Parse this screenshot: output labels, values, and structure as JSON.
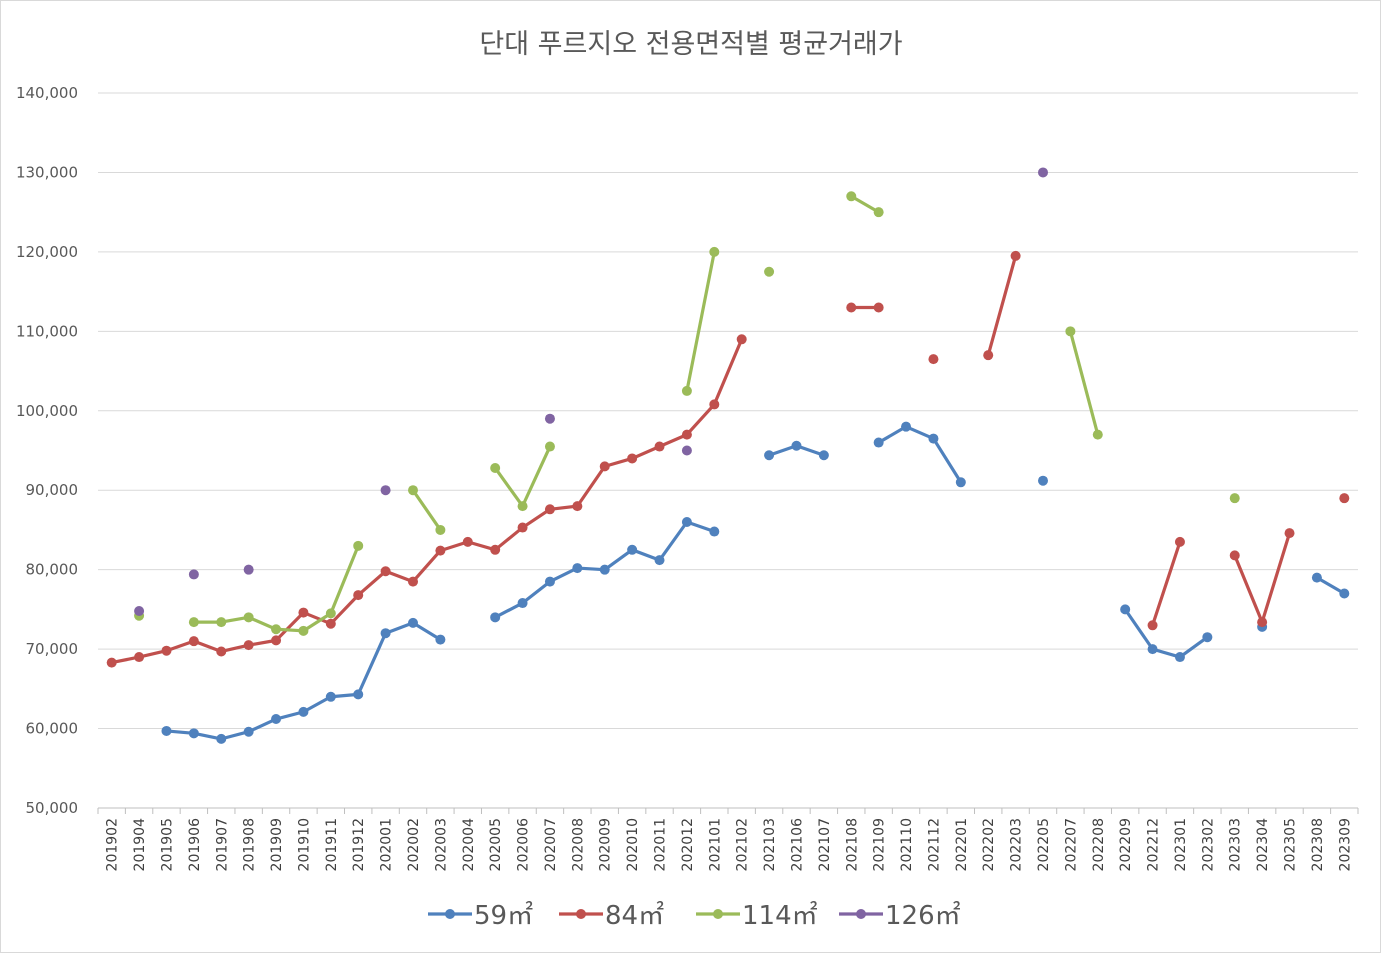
{
  "chart_data": {
    "type": "line",
    "title": "단대 푸르지오 전용면적별 평균거래가",
    "xlabel": "",
    "ylabel": "",
    "ylim": [
      50000,
      140000
    ],
    "yticks": [
      50000,
      60000,
      70000,
      80000,
      90000,
      100000,
      110000,
      120000,
      130000,
      140000
    ],
    "ytick_labels": [
      "50,000",
      "60,000",
      "70,000",
      "80,000",
      "90,000",
      "100,000",
      "110,000",
      "120,000",
      "130,000",
      "140,000"
    ],
    "grid": true,
    "legend_position": "bottom",
    "categories": [
      "201902",
      "201904",
      "201905",
      "201906",
      "201907",
      "201908",
      "201909",
      "201910",
      "201911",
      "201912",
      "202001",
      "202002",
      "202003",
      "202004",
      "202005",
      "202006",
      "202007",
      "202008",
      "202009",
      "202010",
      "202011",
      "202012",
      "202101",
      "202102",
      "202103",
      "202106",
      "202107",
      "202108",
      "202109",
      "202110",
      "202112",
      "202201",
      "202202",
      "202203",
      "202205",
      "202207",
      "202208",
      "202209",
      "202212",
      "202301",
      "202302",
      "202303",
      "202304",
      "202305",
      "202308",
      "202309"
    ],
    "series": [
      {
        "name": "59㎡",
        "color": "#4f81bd",
        "values": [
          null,
          null,
          59700,
          59400,
          58700,
          59600,
          61200,
          62100,
          64000,
          64300,
          72000,
          73300,
          71200,
          null,
          74000,
          75800,
          78500,
          80200,
          80000,
          82500,
          81200,
          86000,
          84800,
          null,
          94400,
          95600,
          94400,
          null,
          96000,
          98000,
          96500,
          91000,
          null,
          null,
          91200,
          null,
          null,
          75000,
          70000,
          69000,
          71500,
          null,
          72800,
          null,
          79000,
          77000
        ]
      },
      {
        "name": "84㎡",
        "color": "#c0504d",
        "values": [
          68300,
          69000,
          69800,
          71000,
          69700,
          70500,
          71100,
          74600,
          73200,
          76800,
          79800,
          78500,
          82400,
          83500,
          82500,
          85300,
          87600,
          88000,
          93000,
          94000,
          95500,
          97000,
          100800,
          109000,
          null,
          null,
          null,
          113000,
          113000,
          null,
          106500,
          null,
          107000,
          119500,
          null,
          null,
          null,
          null,
          73000,
          83500,
          null,
          81800,
          73400,
          84600,
          null,
          89000
        ]
      },
      {
        "name": "114㎡",
        "color": "#9bbb59",
        "values": [
          null,
          74200,
          null,
          73400,
          73400,
          74000,
          72500,
          72300,
          74500,
          83000,
          null,
          90000,
          85000,
          null,
          92800,
          88000,
          95500,
          null,
          null,
          null,
          null,
          102500,
          120000,
          null,
          117500,
          null,
          null,
          127000,
          125000,
          null,
          null,
          null,
          null,
          null,
          null,
          110000,
          97000,
          null,
          null,
          null,
          null,
          89000,
          null,
          null,
          null,
          null
        ]
      },
      {
        "name": "126㎡",
        "color": "#8064a2",
        "values": [
          null,
          74800,
          null,
          79400,
          null,
          80000,
          null,
          null,
          null,
          null,
          90000,
          null,
          null,
          null,
          null,
          null,
          99000,
          null,
          null,
          null,
          null,
          95000,
          null,
          null,
          null,
          null,
          null,
          null,
          null,
          null,
          null,
          null,
          null,
          null,
          130000,
          null,
          null,
          null,
          null,
          null,
          null,
          null,
          null,
          null,
          null,
          null
        ]
      }
    ]
  },
  "colors": {
    "grid": "#d9d9d9",
    "axis": "#bfbfbf",
    "text": "#595959",
    "background": "#ffffff"
  }
}
